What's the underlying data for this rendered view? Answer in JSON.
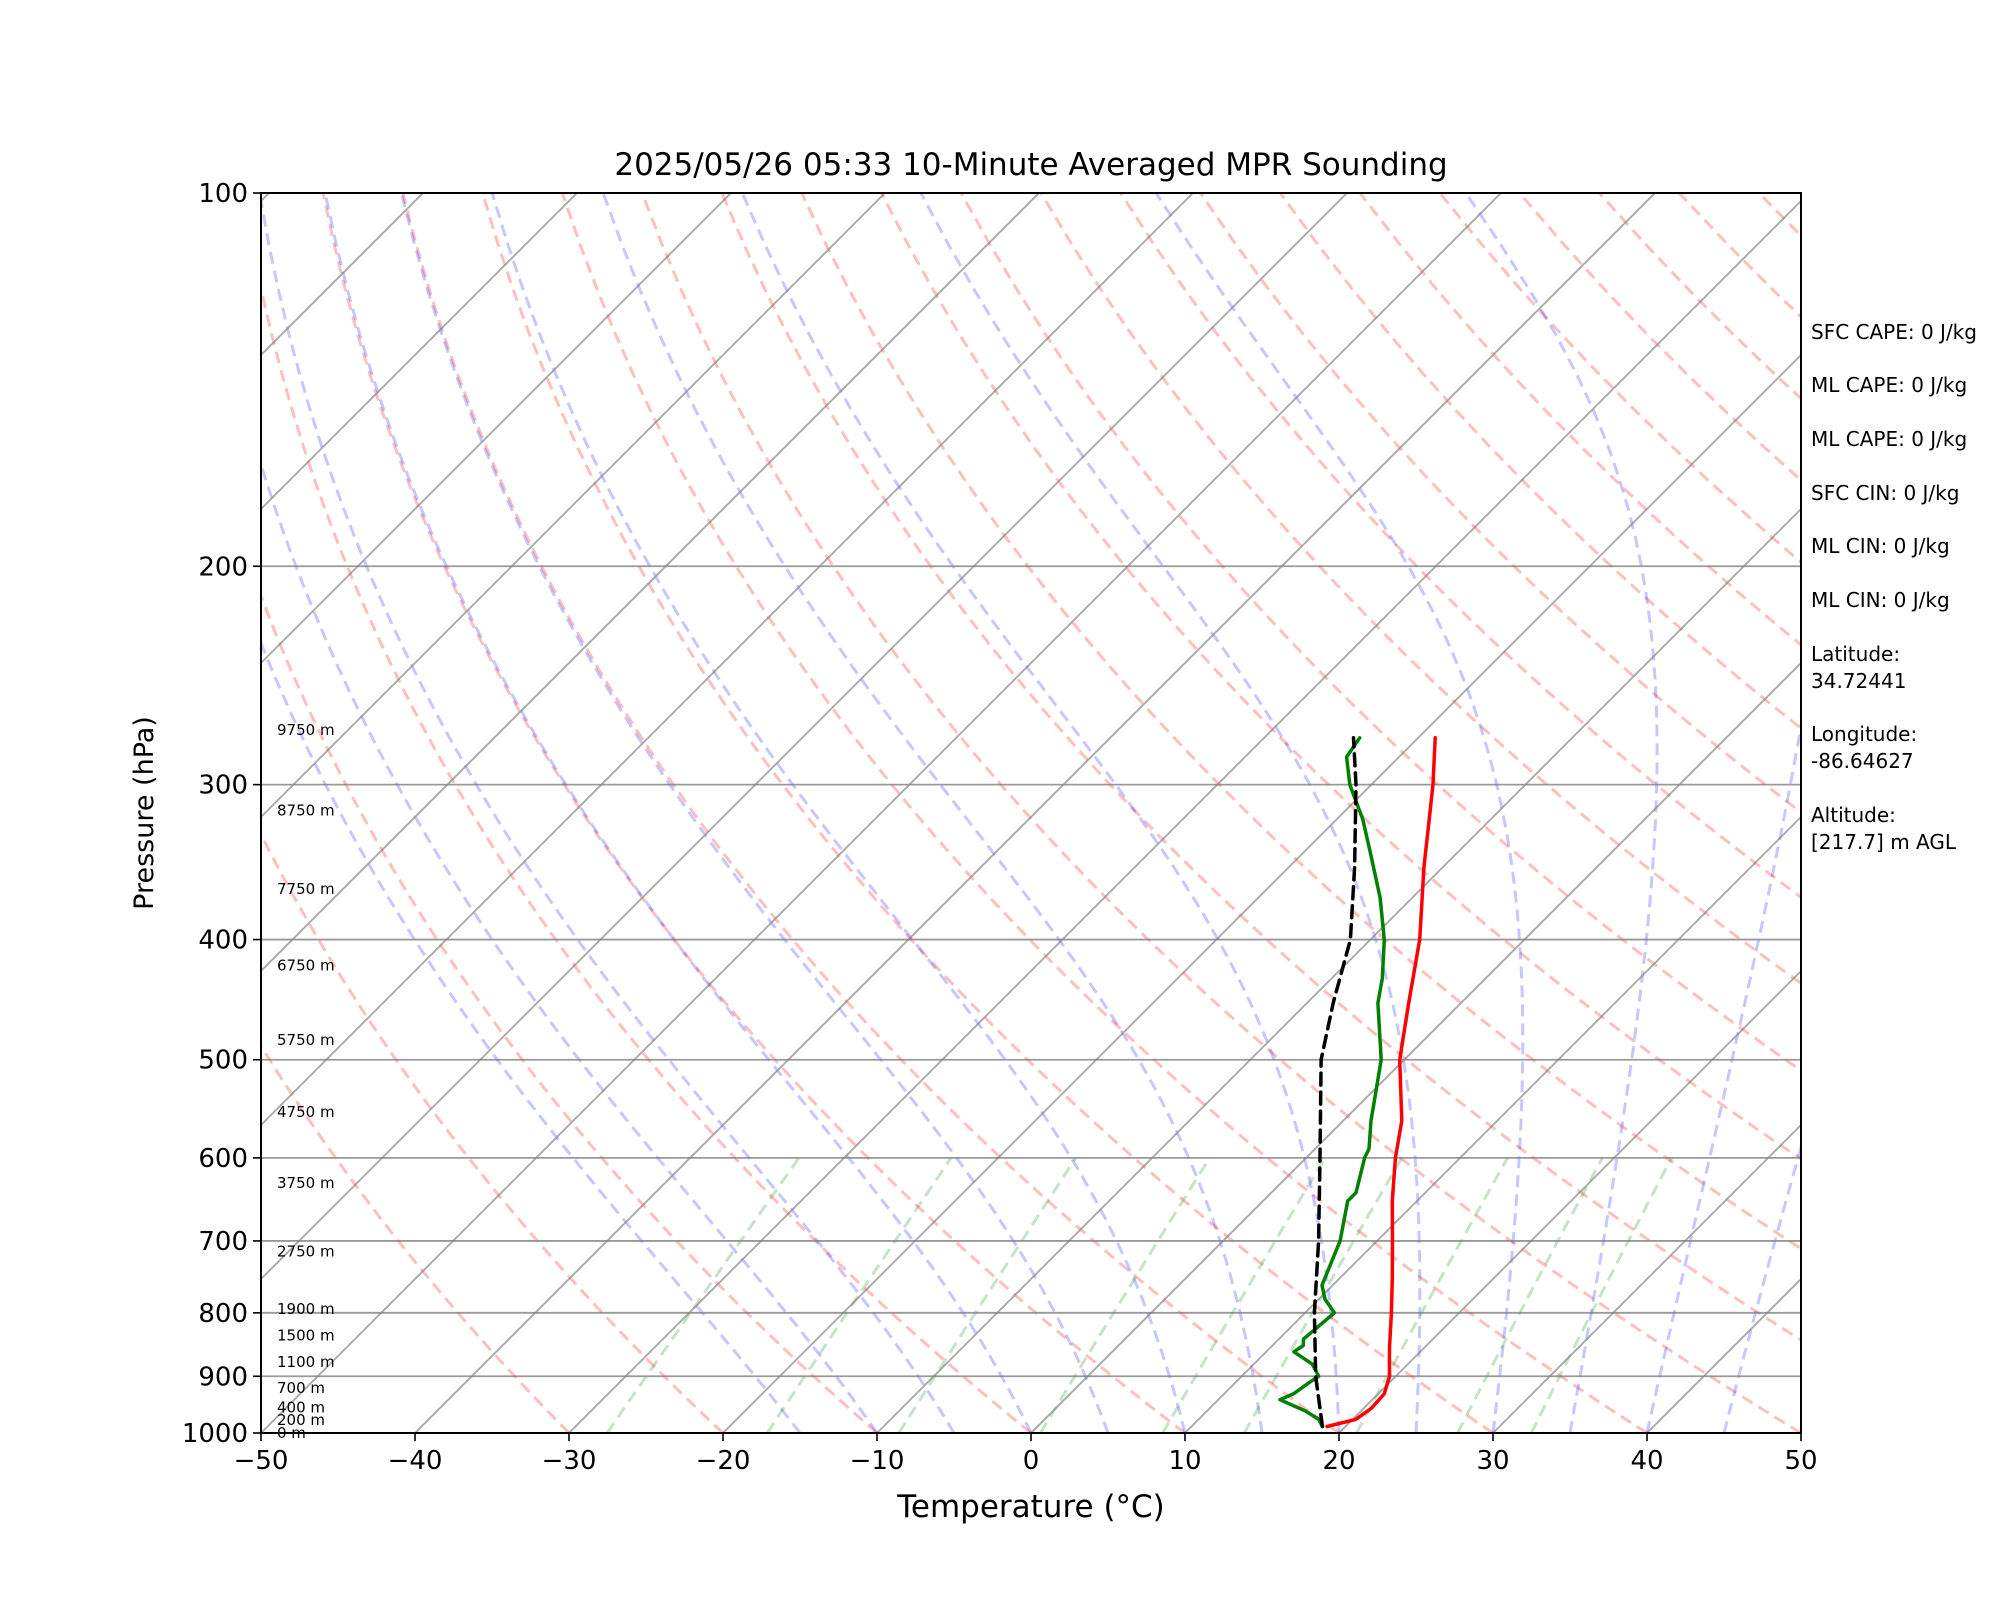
{
  "chart_data": {
    "type": "line",
    "title": "2025/05/26 05:33 10-Minute Averaged MPR Sounding",
    "xlabel": "Temperature (°C)",
    "ylabel": "Pressure (hPa)",
    "xlim": [
      -50,
      50
    ],
    "ylim": [
      1000,
      100
    ],
    "y_scale": "log",
    "grid": true,
    "x_ticks": [
      "−50",
      "−40",
      "−30",
      "−20",
      "−10",
      "0",
      "10",
      "20",
      "30",
      "40",
      "50"
    ],
    "y_ticks": [
      "100",
      "200",
      "300",
      "400",
      "500",
      "600",
      "700",
      "800",
      "900",
      "1000"
    ],
    "height_labels": [
      "0 m",
      "200 m",
      "400 m",
      "700 m",
      "1100 m",
      "1500 m",
      "1900 m",
      "2750 m",
      "3750 m",
      "4750 m",
      "5750 m",
      "6750 m",
      "7750 m",
      "8750 m",
      "9750 m"
    ],
    "series": [
      {
        "color": "#ff0000",
        "p": [
          988,
          975,
          955,
          930,
          900,
          870,
          850,
          800,
          750,
          700,
          650,
          600,
          560,
          500,
          450,
          400,
          350,
          300,
          275
        ],
        "t": [
          18.8,
          20.2,
          20.5,
          20.4,
          19.6,
          18.4,
          17.6,
          15.6,
          13.4,
          11.0,
          8.4,
          5.8,
          3.8,
          -0.3,
          -3.4,
          -6.8,
          -11.2,
          -16.0,
          -18.9
        ]
      },
      {
        "color": "#008000",
        "p": [
          988,
          975,
          960,
          940,
          930,
          910,
          900,
          880,
          860,
          850,
          840,
          800,
          780,
          760,
          700,
          650,
          640,
          600,
          590,
          560,
          500,
          450,
          430,
          400,
          370,
          340,
          320,
          300,
          285,
          275
        ],
        "t": [
          18.5,
          17.8,
          16.4,
          14.0,
          14.5,
          14.8,
          15.0,
          13.8,
          11.8,
          12.0,
          11.6,
          11.9,
          10.4,
          9.3,
          7.6,
          5.5,
          5.5,
          3.8,
          3.5,
          1.8,
          -1.5,
          -5.4,
          -6.7,
          -9.1,
          -12.1,
          -15.7,
          -18.3,
          -21.4,
          -23.4,
          -23.8
        ]
      },
      {
        "color": "#000000",
        "style": "dashed",
        "p": [
          988,
          900,
          800,
          700,
          600,
          500,
          450,
          400,
          350,
          300,
          275
        ],
        "t": [
          18.5,
          14.8,
          10.6,
          6.2,
          0.9,
          -5.4,
          -8.3,
          -11.3,
          -15.7,
          -21.0,
          -24.2
        ]
      }
    ]
  },
  "info": {
    "sfc_cape": "SFC CAPE: 0 J/kg",
    "ml_cape_1": "ML CAPE: 0 J/kg",
    "ml_cape_2": "ML CAPE: 0 J/kg",
    "sfc_cin": "SFC CIN: 0 J/kg",
    "ml_cin_1": "ML CIN: 0 J/kg",
    "ml_cin_2": "ML CIN: 0 J/kg",
    "latitude_label": "Latitude:",
    "latitude_value": "34.72441",
    "longitude_label": "Longitude:",
    "longitude_value": "-86.64627",
    "altitude_label": "Altitude:",
    "altitude_value": "[217.7] m AGL"
  }
}
